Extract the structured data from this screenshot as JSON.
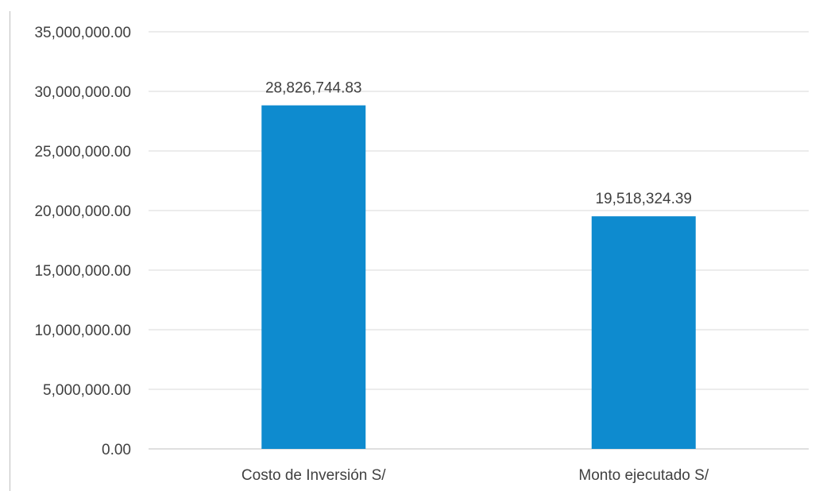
{
  "chart_data": {
    "type": "bar",
    "title": "",
    "xlabel": "",
    "ylabel": "",
    "categories": [
      "Costo de Inversión S/",
      "Monto ejecutado S/"
    ],
    "values": [
      28826744.83,
      19518324.39
    ],
    "value_labels": [
      "28,826,744.83",
      "19,518,324.39"
    ],
    "ylim": [
      0,
      35000000
    ],
    "yticks": [
      0,
      5000000,
      10000000,
      15000000,
      20000000,
      25000000,
      30000000,
      35000000
    ],
    "ytick_labels": [
      "0.00",
      "5,000,000.00",
      "10,000,000.00",
      "15,000,000.00",
      "20,000,000.00",
      "25,000,000.00",
      "30,000,000.00",
      "35,000,000.00"
    ],
    "grid": true,
    "legend": "none",
    "colors": {
      "bar": "#0e8bcf",
      "grid": "#d9d9d9",
      "axis": "#bfbfbf",
      "text": "#404040"
    }
  }
}
